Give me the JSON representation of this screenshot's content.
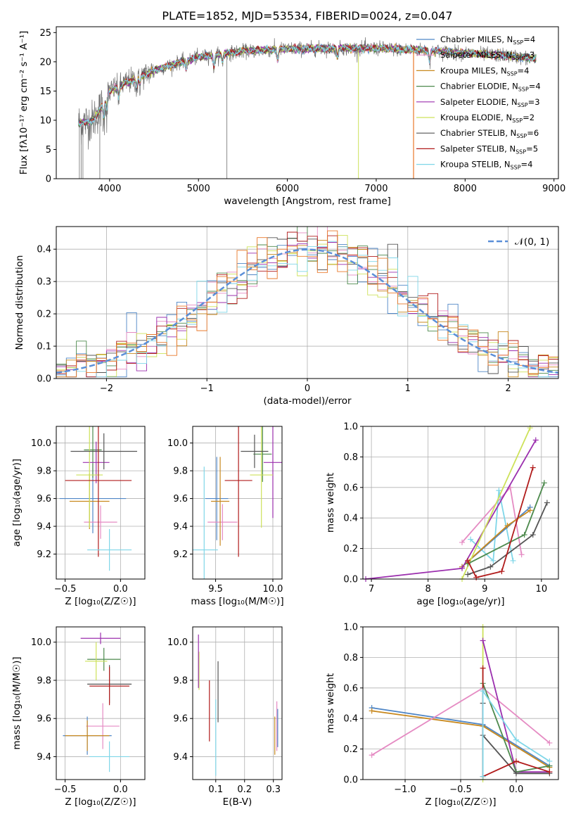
{
  "title": "PLATE=1852, MJD=53534, FIBERID=0024, z=0.047",
  "colors": {
    "Chabrier MILES": "#4f86c6",
    "Salpeter MILES": "#e58bc3",
    "Kroupa MILES": "#c8891f",
    "Chabrier ELODIE": "#4d8a4d",
    "Salpeter ELODIE": "#9b2fae",
    "Kroupa ELODIE": "#cde25a",
    "Chabrier STELIB": "#555555",
    "Salpeter STELIB": "#b11c1c",
    "Kroupa STELIB": "#7fd6e8",
    "data": "#707070",
    "orange": "#e8782a",
    "normal": "#5b8fd8"
  },
  "chart_data": [
    {
      "id": "spectrum",
      "type": "line",
      "title": "PLATE=1852, MJD=53534, FIBERID=0024, z=0.047",
      "xlabel": "wavelength [Angstrom, rest frame]",
      "ylabel": "Flux [fλ10⁻¹⁷ erg cm⁻² s⁻¹ A⁻¹]",
      "xlim": [
        3400,
        9050
      ],
      "ylim": [
        0,
        26
      ],
      "xticks": [
        4000,
        5000,
        6000,
        7000,
        8000,
        9000
      ],
      "yticks": [
        0,
        5,
        10,
        15,
        20,
        25
      ],
      "grid": false,
      "legend_position": "top-right",
      "legend": [
        "Chabrier MILES, N_SSP=4",
        "Salpeter MILES, N_SSP=3",
        "Kroupa MILES, N_SSP=4",
        "Chabrier ELODIE, N_SSP=4",
        "Salpeter ELODIE, N_SSP=3",
        "Kroupa ELODIE, N_SSP=2",
        "Chabrier STELIB, N_SSP=6",
        "Salpeter STELIB, N_SSP=5",
        "Kroupa STELIB, N_SSP=4"
      ],
      "continuum": {
        "x": [
          3650,
          3800,
          3900,
          4000,
          4200,
          4500,
          4800,
          5000,
          5500,
          6000,
          6500,
          7000,
          7500,
          8000,
          8500,
          8800
        ],
        "y": [
          9.5,
          9.8,
          12,
          15,
          16.5,
          18.5,
          20,
          20.8,
          21.8,
          22.2,
          22.3,
          22.3,
          22,
          21.5,
          21,
          20.5
        ]
      }
    },
    {
      "id": "residuals",
      "type": "histogram",
      "xlabel": "(data-model)/error",
      "ylabel": "Normed distribution",
      "xlim": [
        -2.5,
        2.5
      ],
      "ylim": [
        0,
        0.47
      ],
      "xticks": [
        -2,
        -1,
        0,
        1,
        2
      ],
      "yticks": [
        0.0,
        0.1,
        0.2,
        0.3,
        0.4
      ],
      "grid": true,
      "legend_position": "top-right",
      "legend": [
        "𝒩(0, 1)"
      ],
      "bin_width": 0.1
    },
    {
      "id": "age_vs_Z",
      "type": "scatter",
      "xlabel": "Z [log₁₀(Z/Z☉)]",
      "ylabel": "age  [log₁₀(age/yr)]",
      "xlim": [
        -0.58,
        0.22
      ],
      "ylim": [
        9.02,
        10.12
      ],
      "xticks": [
        -0.5,
        0.0
      ],
      "xticklabels": [
        "−0.5",
        "0.0"
      ],
      "yticks": [
        9.2,
        9.4,
        9.6,
        9.8,
        10.0
      ],
      "grid": true,
      "points": [
        {
          "m": "Chabrier MILES",
          "x": -0.25,
          "y": 9.6,
          "ex": 0.3,
          "ey": 0.25
        },
        {
          "m": "Salpeter MILES",
          "x": -0.18,
          "y": 9.43,
          "ex": 0.15,
          "ey": 0.12
        },
        {
          "m": "Kroupa MILES",
          "x": -0.28,
          "y": 9.58,
          "ex": 0.18,
          "ey": 0.2
        },
        {
          "m": "Chabrier ELODIE",
          "x": -0.25,
          "y": 9.95,
          "ex": 0.08,
          "ey": 0.2
        },
        {
          "m": "Salpeter ELODIE",
          "x": -0.22,
          "y": 9.86,
          "ex": 0.12,
          "ey": 0.15
        },
        {
          "m": "Kroupa ELODIE",
          "x": -0.28,
          "y": 9.77,
          "ex": 0.12,
          "ey": 0.38
        },
        {
          "m": "Chabrier STELIB",
          "x": -0.15,
          "y": 9.94,
          "ex": 0.3,
          "ey": 0.13
        },
        {
          "m": "Salpeter STELIB",
          "x": -0.2,
          "y": 9.73,
          "ex": 0.3,
          "ey": 0.55
        },
        {
          "m": "Kroupa STELIB",
          "x": -0.1,
          "y": 9.23,
          "ex": 0.2,
          "ey": 0.15
        }
      ]
    },
    {
      "id": "age_vs_mass",
      "type": "scatter",
      "xlabel": "mass [log₁₀(M/M☉)]",
      "xlim": [
        9.3,
        10.08
      ],
      "ylim": [
        9.02,
        10.12
      ],
      "xticks": [
        9.5,
        10.0
      ],
      "xticklabels": [
        "9.5",
        "10.0"
      ],
      "yticks": [
        9.2,
        9.4,
        9.6,
        9.8,
        10.0
      ],
      "grid": true,
      "points": [
        {
          "m": "Chabrier MILES",
          "x": 9.51,
          "y": 9.6,
          "ex": 0.1,
          "ey": 0.3
        },
        {
          "m": "Salpeter MILES",
          "x": 9.56,
          "y": 9.43,
          "ex": 0.13,
          "ey": 0.13
        },
        {
          "m": "Kroupa MILES",
          "x": 9.54,
          "y": 9.58,
          "ex": 0.08,
          "ey": 0.32
        },
        {
          "m": "Chabrier ELODIE",
          "x": 9.91,
          "y": 9.92,
          "ex": 0.08,
          "ey": 0.2
        },
        {
          "m": "Salpeter ELODIE",
          "x": 10.0,
          "y": 9.86,
          "ex": 0.08,
          "ey": 0.4
        },
        {
          "m": "Kroupa ELODIE",
          "x": 9.9,
          "y": 9.77,
          "ex": 0.1,
          "ey": 0.38
        },
        {
          "m": "Chabrier STELIB",
          "x": 9.84,
          "y": 9.94,
          "ex": 0.12,
          "ey": 0.12
        },
        {
          "m": "Salpeter STELIB",
          "x": 9.7,
          "y": 9.73,
          "ex": 0.12,
          "ey": 0.55
        },
        {
          "m": "Kroupa STELIB",
          "x": 9.4,
          "y": 9.23,
          "ex": 0.12,
          "ey": 0.6
        }
      ]
    },
    {
      "id": "weight_vs_age",
      "type": "line",
      "xlabel": "age  [log₁₀(age/yr)]",
      "ylabel": "mass weight",
      "xlim": [
        6.85,
        10.3
      ],
      "ylim": [
        0,
        1.0
      ],
      "xticks": [
        7,
        8,
        9,
        10
      ],
      "yticks": [
        0.0,
        0.2,
        0.4,
        0.6,
        0.8,
        1.0
      ],
      "grid": true,
      "series": [
        {
          "m": "Salpeter MILES",
          "x": [
            8.6,
            9.45,
            9.65
          ],
          "y": [
            0.24,
            0.6,
            0.16
          ]
        },
        {
          "m": "Kroupa STELIB",
          "x": [
            8.75,
            9.15,
            9.25,
            9.5
          ],
          "y": [
            0.26,
            0.12,
            0.58,
            0.12
          ]
        },
        {
          "m": "Chabrier MILES",
          "x": [
            8.6,
            9.8
          ],
          "y": [
            0.08,
            0.47
          ]
        },
        {
          "m": "Kroupa MILES",
          "x": [
            8.6,
            9.4,
            9.8
          ],
          "y": [
            0.08,
            0.35,
            0.45
          ]
        },
        {
          "m": "Salpeter ELODIE",
          "x": [
            6.9,
            8.6,
            9.9
          ],
          "y": [
            0.0,
            0.07,
            0.91
          ]
        },
        {
          "m": "Kroupa ELODIE",
          "x": [
            8.6,
            9.8
          ],
          "y": [
            0.0,
            0.99
          ]
        },
        {
          "m": "Chabrier ELODIE",
          "x": [
            8.7,
            9.7,
            10.05
          ],
          "y": [
            0.1,
            0.29,
            0.63
          ]
        },
        {
          "m": "Chabrier STELIB",
          "x": [
            8.7,
            9.1,
            9.85,
            10.1
          ],
          "y": [
            0.03,
            0.08,
            0.29,
            0.5
          ]
        },
        {
          "m": "Salpeter STELIB",
          "x": [
            8.7,
            8.85,
            9.3,
            9.85
          ],
          "y": [
            0.12,
            0.01,
            0.05,
            0.73
          ]
        }
      ]
    },
    {
      "id": "mass_vs_Z",
      "type": "scatter",
      "xlabel": "Z [log₁₀(Z/Z☉)]",
      "ylabel": "mass [log₁₀(M/M☉)]",
      "xlim": [
        -0.58,
        0.22
      ],
      "ylim": [
        9.28,
        10.08
      ],
      "xticks": [
        -0.5,
        0.0
      ],
      "xticklabels": [
        "−0.5",
        "0.0"
      ],
      "yticks": [
        9.4,
        9.6,
        9.8,
        10.0
      ],
      "grid": true,
      "points": [
        {
          "m": "Chabrier MILES",
          "x": -0.3,
          "y": 9.51,
          "ex": 0.22,
          "ey": 0.1
        },
        {
          "m": "Salpeter MILES",
          "x": -0.16,
          "y": 9.56,
          "ex": 0.15,
          "ey": 0.12
        },
        {
          "m": "Kroupa MILES",
          "x": -0.3,
          "y": 9.51,
          "ex": 0.2,
          "ey": 0.08
        },
        {
          "m": "Chabrier ELODIE",
          "x": -0.15,
          "y": 9.91,
          "ex": 0.15,
          "ey": 0.06
        },
        {
          "m": "Salpeter ELODIE",
          "x": -0.18,
          "y": 10.02,
          "ex": 0.18,
          "ey": 0.03
        },
        {
          "m": "Kroupa ELODIE",
          "x": -0.22,
          "y": 9.9,
          "ex": 0.1,
          "ey": 0.1
        },
        {
          "m": "Chabrier STELIB",
          "x": -0.1,
          "y": 9.78,
          "ex": 0.2,
          "ey": 0.1
        },
        {
          "m": "Salpeter STELIB",
          "x": -0.1,
          "y": 9.77,
          "ex": 0.18,
          "ey": 0.1
        },
        {
          "m": "Kroupa STELIB",
          "x": -0.1,
          "y": 9.4,
          "ex": 0.18,
          "ey": 0.08
        }
      ]
    },
    {
      "id": "mass_vs_ebv",
      "type": "scatter",
      "xlabel": "E(B-V)",
      "xlim": [
        0.02,
        0.33
      ],
      "ylim": [
        9.28,
        10.08
      ],
      "xticks": [
        0.1,
        0.2,
        0.3
      ],
      "yticks": [
        9.4,
        9.6,
        9.8,
        10.0
      ],
      "grid": true,
      "points": [
        {
          "m": "Kroupa ELODIE",
          "x": 0.042,
          "y": 9.85,
          "ey": 0.1
        },
        {
          "m": "Salpeter ELODIE",
          "x": 0.04,
          "y": 9.9,
          "ey": 0.14
        },
        {
          "m": "Salpeter STELIB",
          "x": 0.078,
          "y": 9.64,
          "ey": 0.16
        },
        {
          "m": "Chabrier STELIB",
          "x": 0.108,
          "y": 9.74,
          "ey": 0.16
        },
        {
          "m": "Kroupa STELIB",
          "x": 0.1,
          "y": 9.5,
          "ey": 0.2
        },
        {
          "m": "Salpeter MILES",
          "x": 0.312,
          "y": 9.56,
          "ey": 0.13
        },
        {
          "m": "Kroupa MILES",
          "x": 0.305,
          "y": 9.51,
          "ey": 0.1
        },
        {
          "m": "Chabrier MILES",
          "x": 0.315,
          "y": 9.55,
          "ey": 0.1
        }
      ]
    },
    {
      "id": "weight_vs_Z",
      "type": "line",
      "xlabel": "Z [log₁₀(Z/Z☉)]",
      "ylabel": "mass weight",
      "xlim": [
        -1.38,
        0.38
      ],
      "ylim": [
        0,
        1.0
      ],
      "xticks": [
        -1.0,
        -0.5,
        0.0
      ],
      "xticklabels": [
        "−1.0",
        "−0.5",
        "0.0"
      ],
      "yticks": [
        0.0,
        0.2,
        0.4,
        0.6,
        0.8,
        1.0
      ],
      "grid": true,
      "series": [
        {
          "m": "Chabrier MILES",
          "x": [
            -1.3,
            -0.3,
            0.3
          ],
          "y": [
            0.47,
            0.36,
            0.09
          ]
        },
        {
          "m": "Kroupa MILES",
          "x": [
            -1.3,
            -0.3,
            0.3
          ],
          "y": [
            0.45,
            0.35,
            0.08
          ]
        },
        {
          "m": "Salpeter MILES",
          "x": [
            -1.3,
            -0.3,
            0.3
          ],
          "y": [
            0.16,
            0.6,
            0.24
          ]
        },
        {
          "m": "Kroupa ELODIE",
          "x": [
            -0.3,
            -0.3
          ],
          "y": [
            1.0,
            0.0
          ]
        },
        {
          "m": "Salpeter ELODIE",
          "x": [
            -0.3,
            0.0,
            0.3
          ],
          "y": [
            0.91,
            0.05,
            0.05
          ]
        },
        {
          "m": "Chabrier ELODIE",
          "x": [
            -0.3,
            0.0,
            0.3
          ],
          "y": [
            0.63,
            0.05,
            0.09
          ]
        },
        {
          "m": "Chabrier STELIB",
          "x": [
            -0.3,
            -0.3,
            0.0,
            0.3
          ],
          "y": [
            0.5,
            0.29,
            0.04,
            0.04
          ]
        },
        {
          "m": "Salpeter STELIB",
          "x": [
            -0.3,
            -0.3,
            0.0,
            0.3
          ],
          "y": [
            0.73,
            0.02,
            0.12,
            0.05
          ]
        },
        {
          "m": "Kroupa STELIB",
          "x": [
            -0.3,
            -0.3,
            0.0,
            0.3
          ],
          "y": [
            0.02,
            0.58,
            0.26,
            0.12
          ]
        }
      ]
    }
  ]
}
